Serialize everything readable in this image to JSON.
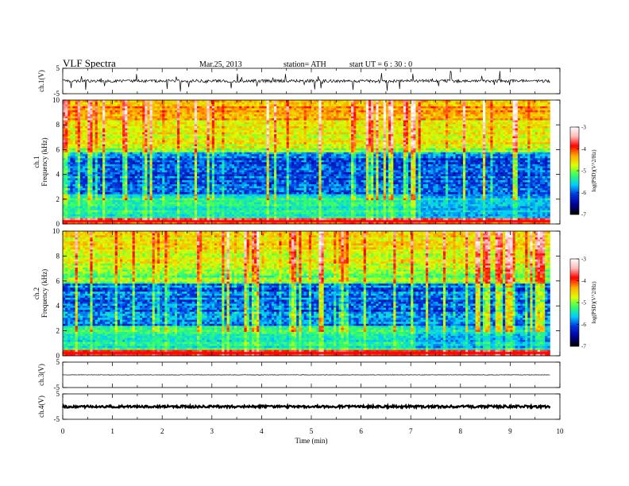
{
  "header": {
    "title": "VLF  Spectra",
    "date": "Mar.25, 2013",
    "station": "station= ATH",
    "start_ut": "start  UT  =   6  : 30 : 0"
  },
  "colors": {
    "trace": "#000000",
    "colormap": [
      "#000000",
      "#00009a",
      "#0033dd",
      "#00ccff",
      "#33ff66",
      "#ddff00",
      "#ffaa00",
      "#ff0000",
      "#ffbbbb",
      "#ffffff"
    ]
  },
  "chart_data": [
    {
      "type": "line",
      "name": "ch1-waveform",
      "ylabel": "ch.1(V)",
      "ylim": [
        -5,
        5
      ],
      "yticks": [
        "5",
        "-5"
      ],
      "x_end_min": 9.8,
      "baseline": 0.0,
      "noise": "impulsive sferics"
    },
    {
      "type": "heatmap",
      "name": "ch1-spectrogram",
      "ylabel": "ch.1\nFrequency  (kHz)",
      "ylim": [
        0,
        10
      ],
      "yticks": [
        "0",
        "2",
        "4",
        "6",
        "8",
        "10"
      ],
      "xlim": [
        0,
        9.8
      ],
      "colorbar": {
        "label": "log(PSD)(V^2/Hz)",
        "ticks": [
          "-3",
          "-4",
          "-5",
          "-6",
          "-7"
        ],
        "range": [
          -7,
          -3
        ]
      }
    },
    {
      "type": "heatmap",
      "name": "ch2-spectrogram",
      "ylabel": "ch.2\nFrequency  (kHz)",
      "ylim": [
        0,
        10
      ],
      "yticks": [
        "0",
        "2",
        "4",
        "6",
        "8",
        "10"
      ],
      "xlim": [
        0,
        9.8
      ],
      "colorbar": {
        "label": "log(PSD)(V^2/Hz)",
        "ticks": [
          "-3",
          "-4",
          "-5",
          "-6",
          "-7"
        ],
        "range": [
          -7,
          -3
        ]
      }
    },
    {
      "type": "line",
      "name": "ch3-waveform",
      "ylabel": "ch.3(V)",
      "ylim": [
        -5,
        5
      ],
      "yticks": [
        "5",
        "-5"
      ],
      "x_end_min": 9.8,
      "baseline": 0.0,
      "noise": "flat"
    },
    {
      "type": "line",
      "name": "ch4-waveform",
      "ylabel": "ch.4(V)",
      "ylim": [
        -5,
        5
      ],
      "yticks": [
        "5",
        "-5"
      ],
      "x_end_min": 9.8,
      "baseline": 0.0,
      "noise": "dense thick band"
    }
  ],
  "xaxis": {
    "label": "Time  (min)",
    "ticks": [
      "0",
      "1",
      "2",
      "3",
      "4",
      "5",
      "6",
      "7",
      "8",
      "9",
      "10"
    ],
    "xlim": [
      0,
      10
    ]
  }
}
